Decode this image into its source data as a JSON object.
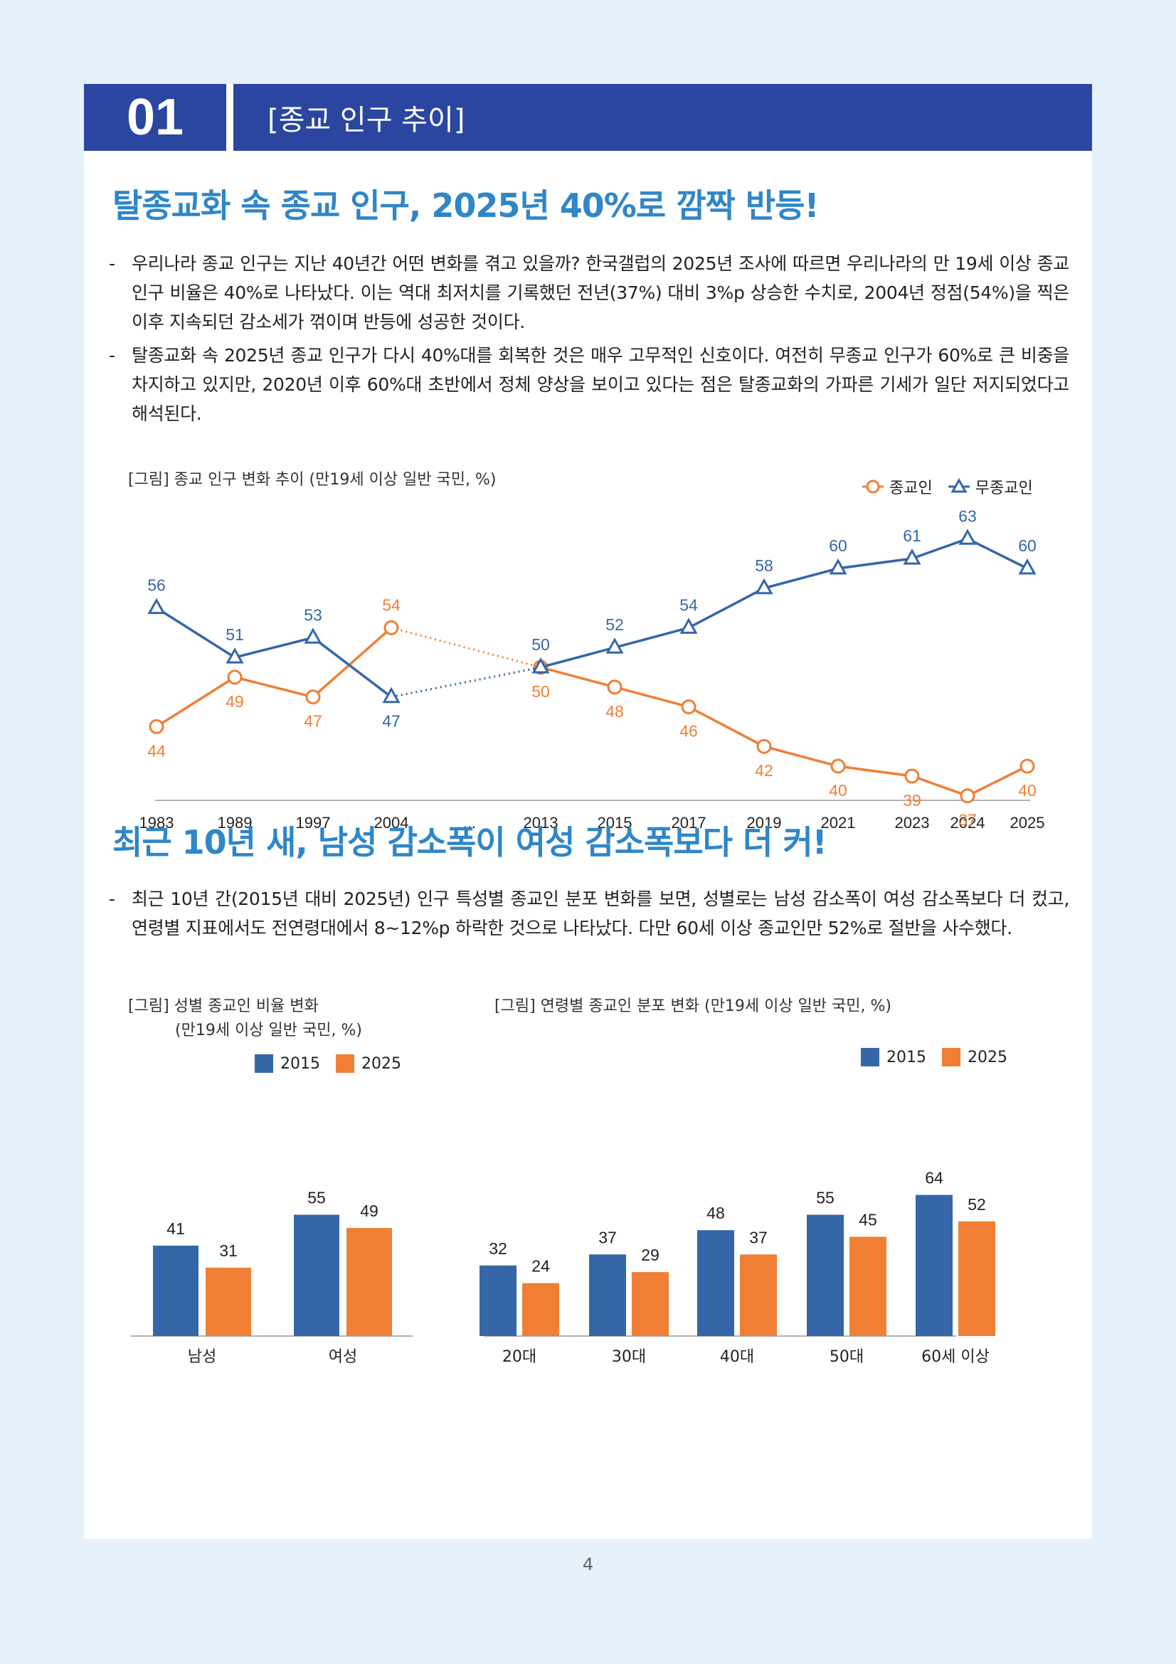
{
  "section": {
    "number": "01",
    "title": "[종교 인구 추이]"
  },
  "headline1": "탈종교화 속 종교 인구, 2025년 40%로 깜짝 반등!",
  "bullets1": [
    "우리나라 종교 인구는 지난 40년간 어떤 변화를 겪고 있을까? 한국갤럽의 2025년 조사에 따르면 우리나라의 만 19세 이상 종교 인구 비율은 40%로 나타났다. 이는 역대 최저치를 기록했던 전년(37%) 대비 3%p 상승한 수치로, 2004년 정점(54%)을 찍은 이후 지속되던 감소세가 꺾이며 반등에 성공한 것이다.",
    "탈종교화 속 2025년 종교 인구가 다시 40%대를 회복한 것은 매우 고무적인 신호이다. 여전히 무종교 인구가 60%로 큰 비중을 차지하고 있지만, 2020년 이후 60%대 초반에서 정체 양상을 보이고 있다는 점은 탈종교화의 가파른 기세가 일단 저지되었다고 해석된다."
  ],
  "fig1_caption": "[그림] 종교 인구 변화 추이 (만19세 이상 일반 국민, %)",
  "headline2": "최근 10년 새, 남성 감소폭이 여성 감소폭보다 더 커!",
  "bullets2": [
    "최근 10년 간(2015년 대비 2025년) 인구 특성별 종교인 분포 변화를 보면, 성별로는 남성 감소폭이 여성 감소폭보다 더 컸고, 연령별 지표에서도 전연령대에서 8~12%p 하락한 것으로 나타났다. 다만 60세 이상 종교인만 52%로 절반을 사수했다."
  ],
  "fig2_caption_line1": "[그림] 성별 종교인 비율 변화",
  "fig2_caption_line2": "(만19세 이상 일반 국민, %)",
  "fig3_caption": "[그림] 연령별 종교인 분포 변화 (만19세 이상 일반 국민, %)",
  "page_number": "4",
  "colors": {
    "blue": "#3566a8",
    "orange": "#f07f35",
    "header": "#2a46a0",
    "headline": "#2f86c8"
  },
  "chart_data": [
    {
      "type": "line",
      "categories": [
        "1983",
        "1989",
        "1997",
        "2004",
        "...",
        "2013",
        "2015",
        "2017",
        "2019",
        "2021",
        "2023",
        "2024",
        "2025"
      ],
      "series": [
        {
          "name": "종교인",
          "color": "#f07f35",
          "marker": "circle",
          "values": [
            44,
            49,
            47,
            54,
            null,
            50,
            48,
            46,
            42,
            40,
            39,
            37,
            40
          ]
        },
        {
          "name": "무종교인",
          "color": "#3566a8",
          "marker": "triangle",
          "values": [
            56,
            51,
            53,
            47,
            null,
            50,
            52,
            54,
            58,
            60,
            61,
            63,
            60
          ]
        }
      ],
      "dotted_gap": [
        "2004",
        "2013"
      ],
      "legend_position": "top-right",
      "grid": false
    },
    {
      "type": "bar",
      "categories": [
        "남성",
        "여성"
      ],
      "series": [
        {
          "name": "2015",
          "color": "#3566a8",
          "values": [
            41,
            55
          ]
        },
        {
          "name": "2025",
          "color": "#f07f35",
          "values": [
            31,
            49
          ]
        }
      ],
      "legend_position": "top"
    },
    {
      "type": "bar",
      "categories": [
        "20대",
        "30대",
        "40대",
        "50대",
        "60세 이상"
      ],
      "series": [
        {
          "name": "2015",
          "color": "#3566a8",
          "values": [
            32,
            37,
            48,
            55,
            64
          ]
        },
        {
          "name": "2025",
          "color": "#f07f35",
          "values": [
            24,
            29,
            37,
            45,
            52
          ]
        }
      ],
      "legend_position": "top-right"
    }
  ]
}
